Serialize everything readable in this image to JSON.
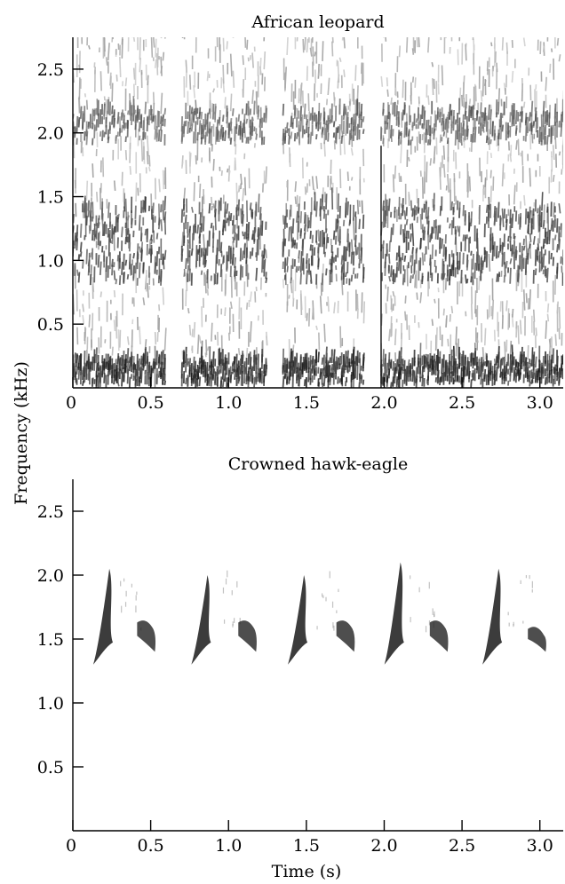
{
  "ylabel": "Frequency (kHz)",
  "xlabel": "Time (s)",
  "chart_data": [
    {
      "type": "heatmap",
      "title": "African leopard",
      "xlim": [
        0,
        3.15
      ],
      "ylim": [
        0,
        2.75
      ],
      "xticks": [
        "0",
        "0.5",
        "1.0",
        "1.5",
        "2.0",
        "2.5",
        "3.0"
      ],
      "xtick_values": [
        0,
        0.5,
        1.0,
        1.5,
        2.0,
        2.5,
        3.0
      ],
      "yticks": [
        "0.5",
        "1.0",
        "1.5",
        "2.0",
        "2.5"
      ],
      "ytick_values": [
        0.5,
        1.0,
        1.5,
        2.0,
        2.5
      ],
      "segments": [
        {
          "t_start": 0.0,
          "t_end": 0.6
        },
        {
          "t_start": 0.7,
          "t_end": 1.25
        },
        {
          "t_start": 1.35,
          "t_end": 1.87
        },
        {
          "t_start": 1.98,
          "t_end": 3.15
        }
      ],
      "bands": [
        {
          "f_low": 0.0,
          "f_high": 0.2,
          "intensity": 0.9
        },
        {
          "f_low": 0.8,
          "f_high": 1.4,
          "intensity": 0.7
        },
        {
          "f_low": 1.9,
          "f_high": 2.15,
          "intensity": 0.45
        }
      ]
    },
    {
      "type": "heatmap",
      "title": "Crowned hawk-eagle",
      "xlim": [
        0,
        3.15
      ],
      "ylim": [
        0,
        2.75
      ],
      "xticks": [
        "0",
        "0.5",
        "1.0",
        "1.5",
        "2.0",
        "2.5",
        "3.0"
      ],
      "xtick_values": [
        0,
        0.5,
        1.0,
        1.5,
        2.0,
        2.5,
        3.0
      ],
      "yticks": [
        "0.5",
        "1.0",
        "1.5",
        "2.0",
        "2.5"
      ],
      "ytick_values": [
        0.5,
        1.0,
        1.5,
        2.0,
        2.5
      ],
      "calls": [
        {
          "t": 0.2,
          "kind": "rising",
          "f_low": 1.3,
          "f_high": 2.05
        },
        {
          "t": 0.47,
          "kind": "short",
          "f_low": 1.4,
          "f_high": 1.65
        },
        {
          "t": 0.83,
          "kind": "rising",
          "f_low": 1.3,
          "f_high": 2.0
        },
        {
          "t": 1.12,
          "kind": "short",
          "f_low": 1.4,
          "f_high": 1.65
        },
        {
          "t": 1.45,
          "kind": "rising",
          "f_low": 1.3,
          "f_high": 2.0
        },
        {
          "t": 1.75,
          "kind": "short",
          "f_low": 1.4,
          "f_high": 1.65
        },
        {
          "t": 2.07,
          "kind": "rising",
          "f_low": 1.3,
          "f_high": 2.1
        },
        {
          "t": 2.35,
          "kind": "short",
          "f_low": 1.4,
          "f_high": 1.65
        },
        {
          "t": 2.7,
          "kind": "rising",
          "f_low": 1.3,
          "f_high": 2.05
        },
        {
          "t": 2.98,
          "kind": "short",
          "f_low": 1.4,
          "f_high": 1.6
        }
      ]
    }
  ]
}
